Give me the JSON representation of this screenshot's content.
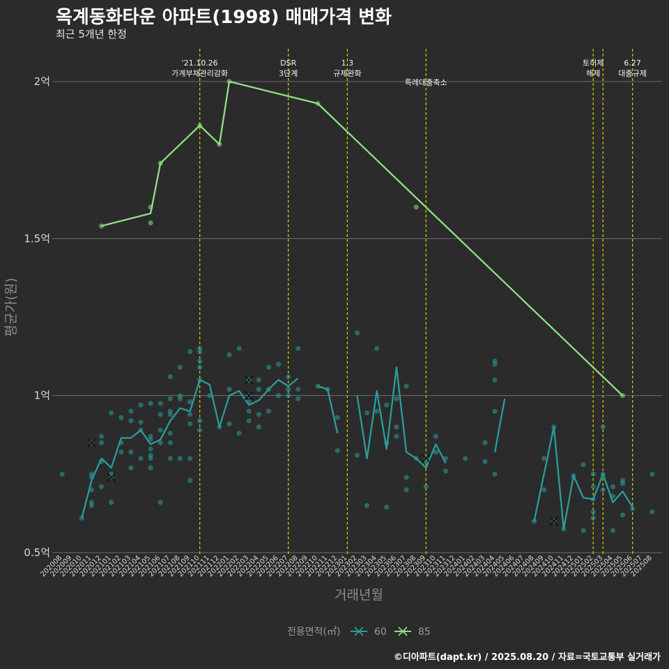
{
  "header": {
    "title": "옥계동화타운 아파트(1998) 매매가격 변화",
    "subtitle": "최근 5개년 한정"
  },
  "footer": {
    "caption": "©디아파트(dapt.kr) / 2025.08.20 / 자료=국토교통부 실거래가"
  },
  "colors": {
    "background": "#2b2b2b",
    "grid": "#6e6e6e",
    "annotation_line": "#d4d400",
    "series_60": "#2a9d9a",
    "series_85": "#90e085"
  },
  "chart_data": {
    "type": "line",
    "xlabel": "거래년월",
    "ylabel": "평균가(원)",
    "ylim": [
      0.5,
      2.15
    ],
    "y_ticks": [
      {
        "value": 0.5,
        "label": "0.5억"
      },
      {
        "value": 1.0,
        "label": "1억"
      },
      {
        "value": 1.5,
        "label": "1.5억"
      },
      {
        "value": 2.0,
        "label": "2억"
      }
    ],
    "x_categories": [
      "202008",
      "202009",
      "202010",
      "202011",
      "202012",
      "202101",
      "202102",
      "202103",
      "202104",
      "202105",
      "202106",
      "202107",
      "202108",
      "202109",
      "202110",
      "202111",
      "202112",
      "202201",
      "202202",
      "202203",
      "202204",
      "202205",
      "202206",
      "202207",
      "202208",
      "202209",
      "202210",
      "202211",
      "202212",
      "202301",
      "202302",
      "202303",
      "202304",
      "202305",
      "202306",
      "202307",
      "202308",
      "202309",
      "202310",
      "202311",
      "202312",
      "202401",
      "202402",
      "202403",
      "202404",
      "202405",
      "202406",
      "202407",
      "202408",
      "202409",
      "202410",
      "202411",
      "202412",
      "202501",
      "202502",
      "202503",
      "202504",
      "202505",
      "202506",
      "202507",
      "202508"
    ],
    "legend": {
      "title": "전용면적(㎡)",
      "position": "bottom",
      "items": [
        {
          "label": "60",
          "color": "#2a9d9a"
        },
        {
          "label": "85",
          "color": "#90e085"
        }
      ]
    },
    "annotations": [
      {
        "x": "202110",
        "label": "'21.10.26 가계부채관리강화"
      },
      {
        "x": "202207",
        "label": "DSR 3단계"
      },
      {
        "x": "202301",
        "label": "1.3 규제완화"
      },
      {
        "x": "202309",
        "label": "특례대출축소"
      },
      {
        "x": "202502",
        "label": "토허제 해제"
      },
      {
        "x": "202503",
        "label": ""
      },
      {
        "x": "202506",
        "label": "6.27 대출규제"
      }
    ],
    "series": [
      {
        "name": "60",
        "color": "#2a9d9a",
        "line_segments": [
          [
            [
              "202010",
              0.61
            ],
            [
              "202011",
              0.73
            ],
            [
              "202012",
              0.8
            ],
            [
              "202101",
              0.77
            ],
            [
              "202102",
              0.865
            ],
            [
              "202103",
              0.865
            ],
            [
              "202104",
              0.89
            ],
            [
              "202105",
              0.845
            ],
            [
              "202106",
              0.86
            ],
            [
              "202107",
              0.92
            ],
            [
              "202108",
              0.96
            ],
            [
              "202109",
              0.95
            ],
            [
              "202110",
              1.05
            ],
            [
              "202111",
              1.035
            ],
            [
              "202112",
              0.9
            ],
            [
              "202201",
              1.0
            ],
            [
              "202202",
              1.015
            ],
            [
              "202203",
              0.97
            ],
            [
              "202204",
              0.985
            ],
            [
              "202205",
              1.02
            ],
            [
              "202206",
              1.05
            ],
            [
              "202207",
              1.03
            ],
            [
              "202208",
              1.055
            ]
          ],
          [
            [
              "202210",
              1.03
            ],
            [
              "202211",
              1.02
            ],
            [
              "202212",
              0.88
            ]
          ],
          [
            [
              "202302",
              1.0
            ],
            [
              "202303",
              0.8
            ],
            [
              "202304",
              1.015
            ],
            [
              "202305",
              0.83
            ],
            [
              "202306",
              1.09
            ],
            [
              "202307",
              0.82
            ],
            [
              "202308",
              0.8
            ],
            [
              "202309",
              0.77
            ],
            [
              "202310",
              0.845
            ],
            [
              "202311",
              0.785
            ]
          ],
          [
            [
              "202404",
              0.82
            ],
            [
              "202405",
              0.99
            ]
          ],
          [
            [
              "202408",
              0.6
            ],
            [
              "202410",
              0.9
            ],
            [
              "202411",
              0.575
            ],
            [
              "202412",
              0.745
            ],
            [
              "202501",
              0.675
            ],
            [
              "202502",
              0.67
            ],
            [
              "202503",
              0.75
            ],
            [
              "202504",
              0.66
            ],
            [
              "202505",
              0.695
            ],
            [
              "202506",
              0.645
            ]
          ]
        ],
        "points": [
          [
            "202008",
            0.75
          ],
          [
            "202010",
            0.61
          ],
          [
            "202011",
            0.66
          ],
          [
            "202011",
            0.7
          ],
          [
            "202011",
            0.75
          ],
          [
            "202011",
            0.74
          ],
          [
            "202011",
            0.65
          ],
          [
            "202012",
            0.87
          ],
          [
            "202012",
            0.85
          ],
          [
            "202012",
            0.79
          ],
          [
            "202012",
            0.71
          ],
          [
            "202101",
            0.945
          ],
          [
            "202101",
            0.75
          ],
          [
            "202101",
            0.66
          ],
          [
            "202102",
            0.93
          ],
          [
            "202102",
            0.85
          ],
          [
            "202102",
            0.82
          ],
          [
            "202103",
            0.95
          ],
          [
            "202103",
            0.92
          ],
          [
            "202103",
            0.82
          ],
          [
            "202103",
            0.77
          ],
          [
            "202104",
            0.97
          ],
          [
            "202104",
            0.915
          ],
          [
            "202104",
            0.89
          ],
          [
            "202104",
            0.8
          ],
          [
            "202105",
            0.975
          ],
          [
            "202105",
            0.87
          ],
          [
            "202105",
            0.86
          ],
          [
            "202105",
            0.83
          ],
          [
            "202105",
            0.81
          ],
          [
            "202105",
            0.8
          ],
          [
            "202105",
            0.77
          ],
          [
            "202106",
            0.975
          ],
          [
            "202106",
            0.94
          ],
          [
            "202106",
            0.89
          ],
          [
            "202106",
            0.85
          ],
          [
            "202106",
            0.66
          ],
          [
            "202107",
            1.06
          ],
          [
            "202107",
            0.99
          ],
          [
            "202107",
            0.95
          ],
          [
            "202107",
            0.94
          ],
          [
            "202107",
            0.88
          ],
          [
            "202107",
            0.85
          ],
          [
            "202107",
            0.8
          ],
          [
            "202108",
            1.09
          ],
          [
            "202108",
            1.0
          ],
          [
            "202108",
            0.99
          ],
          [
            "202108",
            0.8
          ],
          [
            "202109",
            1.14
          ],
          [
            "202109",
            0.98
          ],
          [
            "202109",
            0.94
          ],
          [
            "202109",
            0.91
          ],
          [
            "202109",
            0.8
          ],
          [
            "202109",
            0.73
          ],
          [
            "202110",
            1.15
          ],
          [
            "202110",
            1.14
          ],
          [
            "202110",
            1.11
          ],
          [
            "202110",
            1.09
          ],
          [
            "202110",
            1.05
          ],
          [
            "202110",
            0.92
          ],
          [
            "202110",
            0.89
          ],
          [
            "202111",
            1.0
          ],
          [
            "202112",
            0.9
          ],
          [
            "202201",
            1.13
          ],
          [
            "202201",
            1.02
          ],
          [
            "202201",
            0.91
          ],
          [
            "202202",
            1.15
          ],
          [
            "202202",
            0.88
          ],
          [
            "202203",
            1.05
          ],
          [
            "202203",
            0.98
          ],
          [
            "202203",
            0.95
          ],
          [
            "202203",
            0.92
          ],
          [
            "202204",
            1.05
          ],
          [
            "202204",
            1.02
          ],
          [
            "202204",
            0.94
          ],
          [
            "202204",
            0.9
          ],
          [
            "202205",
            1.09
          ],
          [
            "202205",
            1.02
          ],
          [
            "202205",
            0.95
          ],
          [
            "202206",
            1.1
          ],
          [
            "202206",
            1.0
          ],
          [
            "202207",
            1.06
          ],
          [
            "202207",
            1.02
          ],
          [
            "202207",
            1.0
          ],
          [
            "202208",
            1.15
          ],
          [
            "202208",
            1.02
          ],
          [
            "202208",
            0.99
          ],
          [
            "202210",
            1.03
          ],
          [
            "202211",
            1.02
          ],
          [
            "202212",
            0.93
          ],
          [
            "202212",
            0.825
          ],
          [
            "202302",
            1.2
          ],
          [
            "202302",
            0.81
          ],
          [
            "202303",
            0.945
          ],
          [
            "202303",
            0.65
          ],
          [
            "202304",
            1.15
          ],
          [
            "202304",
            0.95
          ],
          [
            "202305",
            0.97
          ],
          [
            "202305",
            0.85
          ],
          [
            "202305",
            0.645
          ],
          [
            "202306",
            0.99
          ],
          [
            "202306",
            0.9
          ],
          [
            "202306",
            0.87
          ],
          [
            "202307",
            1.03
          ],
          [
            "202307",
            0.74
          ],
          [
            "202307",
            0.7
          ],
          [
            "202308",
            0.8
          ],
          [
            "202309",
            0.79
          ],
          [
            "202309",
            0.71
          ],
          [
            "202310",
            0.87
          ],
          [
            "202310",
            0.82
          ],
          [
            "202311",
            0.8
          ],
          [
            "202311",
            0.76
          ],
          [
            "202401",
            0.8
          ],
          [
            "202403",
            0.85
          ],
          [
            "202403",
            0.79
          ],
          [
            "202404",
            1.11
          ],
          [
            "202404",
            1.1
          ],
          [
            "202404",
            1.05
          ],
          [
            "202404",
            0.95
          ],
          [
            "202404",
            0.75
          ],
          [
            "202408",
            0.6
          ],
          [
            "202409",
            0.8
          ],
          [
            "202409",
            0.7
          ],
          [
            "202410",
            0.9
          ],
          [
            "202411",
            0.575
          ],
          [
            "202412",
            0.745
          ],
          [
            "202501",
            0.78
          ],
          [
            "202501",
            0.57
          ],
          [
            "202502",
            0.75
          ],
          [
            "202502",
            0.71
          ],
          [
            "202502",
            0.67
          ],
          [
            "202502",
            0.63
          ],
          [
            "202502",
            0.61
          ],
          [
            "202503",
            0.9
          ],
          [
            "202503",
            0.75
          ],
          [
            "202503",
            0.7
          ],
          [
            "202504",
            0.71
          ],
          [
            "202504",
            0.68
          ],
          [
            "202504",
            0.57
          ],
          [
            "202505",
            0.73
          ],
          [
            "202505",
            0.72
          ],
          [
            "202505",
            0.62
          ],
          [
            "202506",
            0.64
          ],
          [
            "202508",
            0.75
          ],
          [
            "202508",
            0.63
          ]
        ],
        "cancelled": [
          [
            "202011",
            0.85
          ],
          [
            "202101",
            0.74
          ],
          [
            "202203",
            1.05
          ],
          [
            "202203",
            1.0
          ],
          [
            "202309",
            0.8
          ],
          [
            "202410",
            0.6
          ]
        ]
      },
      {
        "name": "85",
        "color": "#90e085",
        "line_segments": [
          [
            [
              "202012",
              1.54
            ],
            [
              "202105",
              1.58
            ],
            [
              "202106",
              1.74
            ],
            [
              "202110",
              1.86
            ],
            [
              "202112",
              1.8
            ],
            [
              "202201",
              2.0
            ],
            [
              "202210",
              1.93
            ],
            [
              "202505",
              1.0
            ]
          ]
        ],
        "points": [
          [
            "202012",
            1.54
          ],
          [
            "202105",
            1.6
          ],
          [
            "202105",
            1.55
          ],
          [
            "202106",
            1.74
          ],
          [
            "202110",
            1.86
          ],
          [
            "202112",
            1.8
          ],
          [
            "202201",
            2.0
          ],
          [
            "202210",
            1.93
          ],
          [
            "202308",
            1.6
          ],
          [
            "202505",
            1.0
          ]
        ],
        "cancelled": []
      }
    ]
  }
}
